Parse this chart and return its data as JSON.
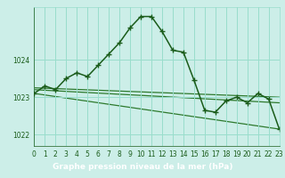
{
  "title": "Graphe pression niveau de la mer (hPa)",
  "background_color": "#cceee8",
  "plot_bg_color": "#cceee8",
  "footer_bg_color": "#4a7c4a",
  "grid_color": "#99ddcc",
  "line_color_main": "#1a5c1a",
  "line_color_trend": "#2d7a2d",
  "xlim": [
    0,
    23
  ],
  "ylim": [
    1021.7,
    1025.4
  ],
  "yticks": [
    1022,
    1023,
    1024
  ],
  "xticks": [
    0,
    1,
    2,
    3,
    4,
    5,
    6,
    7,
    8,
    9,
    10,
    11,
    12,
    13,
    14,
    15,
    16,
    17,
    18,
    19,
    20,
    21,
    22,
    23
  ],
  "series_main": {
    "x": [
      0,
      1,
      2,
      3,
      4,
      5,
      6,
      7,
      8,
      9,
      10,
      11,
      12,
      13,
      14,
      15,
      16,
      17,
      18,
      19,
      20,
      21,
      22,
      23
    ],
    "y": [
      1023.1,
      1023.3,
      1023.2,
      1023.5,
      1023.65,
      1023.55,
      1023.85,
      1024.15,
      1024.45,
      1024.85,
      1025.15,
      1025.15,
      1024.75,
      1024.25,
      1024.2,
      1023.45,
      1022.65,
      1022.6,
      1022.9,
      1023.0,
      1022.85,
      1023.1,
      1022.95,
      1022.15
    ]
  },
  "series_trend1": {
    "x": [
      0,
      23
    ],
    "y": [
      1023.1,
      1022.15
    ]
  },
  "series_trend2": {
    "x": [
      0,
      23
    ],
    "y": [
      1023.2,
      1022.85
    ]
  },
  "series_trend3": {
    "x": [
      0,
      23
    ],
    "y": [
      1023.25,
      1023.0
    ]
  },
  "tick_color": "#1a5c1a",
  "label_fontsize": 5.5,
  "xlabel_fontsize": 6.5
}
